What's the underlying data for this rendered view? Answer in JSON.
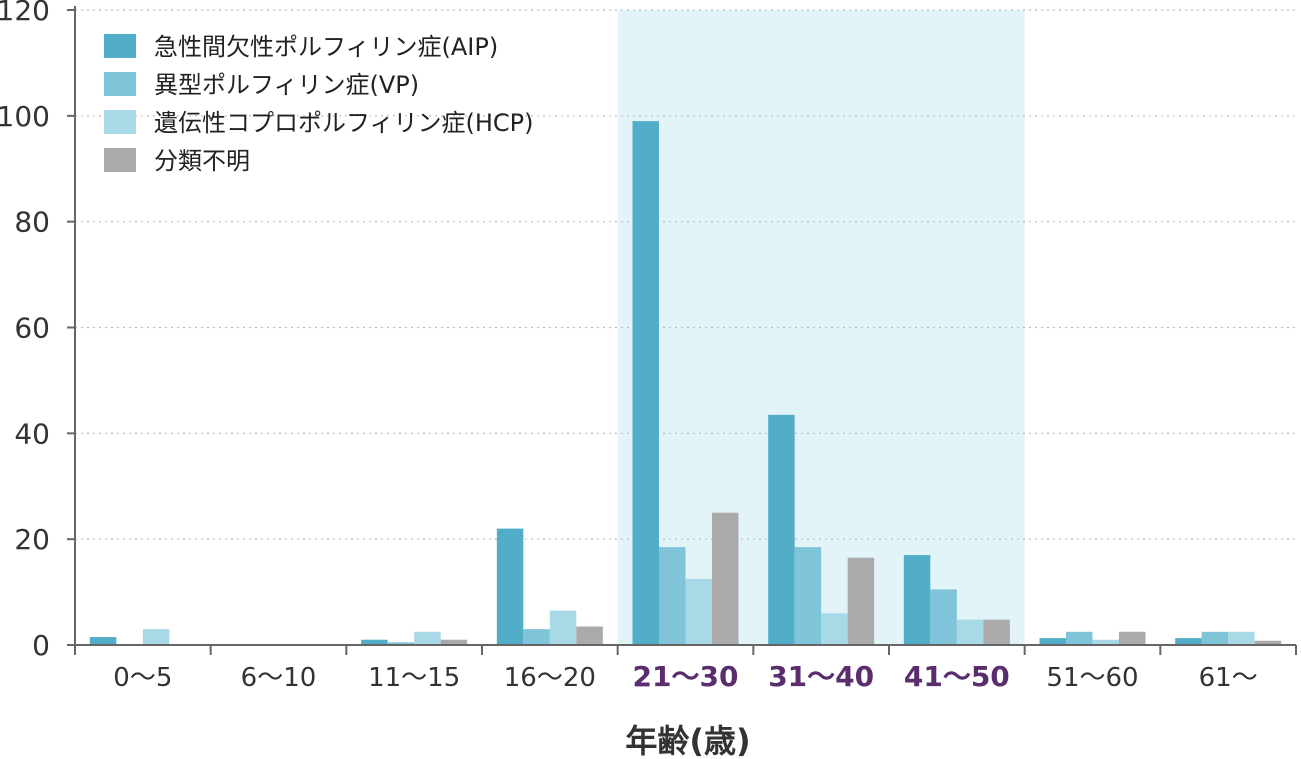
{
  "chart_data": {
    "type": "bar",
    "categories": [
      "0〜5",
      "6〜10",
      "11〜15",
      "16〜20",
      "21〜30",
      "31〜40",
      "41〜50",
      "51〜60",
      "61〜"
    ],
    "highlighted_categories": [
      "21〜30",
      "31〜40",
      "41〜50"
    ],
    "series": [
      {
        "name": "急性間欠性ポルフィリン症(AIP)",
        "color": "#52aec8",
        "values": [
          1.5,
          0,
          1,
          22,
          99,
          43.5,
          17,
          1.3,
          1.3
        ]
      },
      {
        "name": "異型ポルフィリン症(VP)",
        "color": "#7fc4d8",
        "values": [
          0,
          0,
          0.5,
          3,
          18.5,
          18.5,
          10.5,
          2.5,
          2.5
        ]
      },
      {
        "name": "遺伝性コプロポルフィリン症(HCP)",
        "color": "#a8d9e6",
        "values": [
          3,
          0,
          2.5,
          6.5,
          12.5,
          6,
          4.8,
          1,
          2.5
        ]
      },
      {
        "name": "分類不明",
        "color": "#aaaaaa",
        "values": [
          0,
          0,
          1,
          3.5,
          25,
          16.5,
          4.8,
          2.5,
          0.8
        ]
      }
    ],
    "title": "",
    "xlabel": "年齢(歳)",
    "ylabel": "",
    "ylim": [
      0,
      120
    ],
    "yticks": [
      0,
      20,
      40,
      60,
      80,
      100,
      120
    ],
    "grid": true,
    "legend_position": "top-left",
    "highlight_color": "#e3f4f9"
  }
}
